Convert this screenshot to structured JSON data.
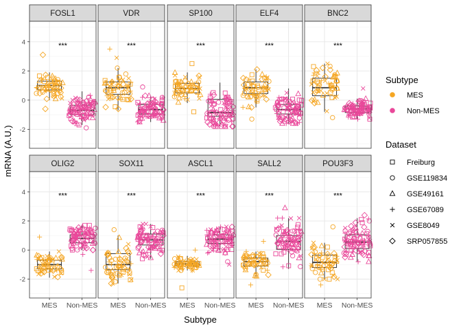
{
  "chart_data": {
    "type": "box-jitter facet",
    "ylabel": "mRNA (A.U.)",
    "xlabel": "Subtype",
    "categories": [
      "MES",
      "Non-MES"
    ],
    "ylim": [
      -3.3,
      5.4
    ],
    "y_ticks": [
      -2,
      0,
      2,
      4
    ],
    "y_tick_labels": [
      "-2",
      "0",
      "2",
      "4"
    ],
    "grid": true,
    "facet_rows": 2,
    "facet_cols": 5,
    "colors": {
      "MES": "#F5A623",
      "Non-MES": "#E9489A"
    },
    "legend": {
      "placement": "right",
      "subtype_title": "Subtype",
      "subtype_entries": [
        "MES",
        "Non-MES"
      ],
      "dataset_title": "Dataset",
      "dataset_entries": [
        {
          "label": "Freiburg",
          "shape": "square"
        },
        {
          "label": "GSE119834",
          "shape": "circle"
        },
        {
          "label": "GSE49161",
          "shape": "triangle"
        },
        {
          "label": "GSE67089",
          "shape": "plus"
        },
        {
          "label": "GSE8049",
          "shape": "cross"
        },
        {
          "label": "SRP057855",
          "shape": "diamond"
        }
      ]
    },
    "panels": [
      {
        "gene": "FOSL1",
        "significance": "***",
        "groups": [
          {
            "name": "MES",
            "median": 1.0,
            "q1": 0.7,
            "q3": 1.3,
            "whisker_low": 0.0,
            "whisker_high": 1.9,
            "outliers": [
              3.1,
              -0.6
            ]
          },
          {
            "name": "Non-MES",
            "median": -0.7,
            "q1": -1.0,
            "q3": -0.35,
            "whisker_low": -1.7,
            "whisker_high": 0.6,
            "outliers": [
              -1.9
            ]
          }
        ]
      },
      {
        "gene": "VDR",
        "significance": "***",
        "groups": [
          {
            "name": "MES",
            "median": 0.85,
            "q1": 0.4,
            "q3": 1.25,
            "whisker_low": -0.7,
            "whisker_high": 2.2,
            "outliers": [
              3.5,
              2.9
            ]
          },
          {
            "name": "Non-MES",
            "median": -0.65,
            "q1": -0.95,
            "q3": -0.3,
            "whisker_low": -1.5,
            "whisker_high": 0.3,
            "outliers": [
              0.9
            ]
          }
        ]
      },
      {
        "gene": "SP100",
        "significance": "***",
        "groups": [
          {
            "name": "MES",
            "median": 0.8,
            "q1": 0.5,
            "q3": 1.15,
            "whisker_low": -0.2,
            "whisker_high": 1.9,
            "outliers": [
              2.5,
              -0.8
            ]
          },
          {
            "name": "Non-MES",
            "median": -0.85,
            "q1": -1.1,
            "q3": 0.05,
            "whisker_low": -1.8,
            "whisker_high": 1.2,
            "outliers": []
          }
        ]
      },
      {
        "gene": "ELF4",
        "significance": "***",
        "groups": [
          {
            "name": "MES",
            "median": 0.85,
            "q1": 0.45,
            "q3": 1.25,
            "whisker_low": -0.5,
            "whisker_high": 2.1,
            "outliers": [
              -1.3
            ]
          },
          {
            "name": "Non-MES",
            "median": -0.65,
            "q1": -0.95,
            "q3": -0.3,
            "whisker_low": -1.6,
            "whisker_high": 0.8,
            "outliers": []
          }
        ]
      },
      {
        "gene": "BNC2",
        "significance": "***",
        "groups": [
          {
            "name": "MES",
            "median": 0.85,
            "q1": 0.3,
            "q3": 1.5,
            "whisker_low": -0.8,
            "whisker_high": 2.5,
            "outliers": [
              -1.2
            ]
          },
          {
            "name": "Non-MES",
            "median": -0.6,
            "q1": -0.85,
            "q3": -0.4,
            "whisker_low": -1.3,
            "whisker_high": 0.1,
            "outliers": [
              0.8
            ]
          }
        ]
      },
      {
        "gene": "OLIG2",
        "significance": "***",
        "groups": [
          {
            "name": "MES",
            "median": -1.0,
            "q1": -1.3,
            "q3": -0.7,
            "whisker_low": -1.9,
            "whisker_high": -0.1,
            "outliers": [
              0.9
            ]
          },
          {
            "name": "Non-MES",
            "median": 0.8,
            "q1": 0.5,
            "q3": 1.05,
            "whisker_low": 0.0,
            "whisker_high": 1.7,
            "outliers": [
              -1.4,
              -0.3
            ]
          }
        ]
      },
      {
        "gene": "SOX11",
        "significance": "***",
        "groups": [
          {
            "name": "MES",
            "median": -1.0,
            "q1": -1.35,
            "q3": -0.25,
            "whisker_low": -2.3,
            "whisker_high": 1.0,
            "outliers": [
              1.4
            ]
          },
          {
            "name": "Non-MES",
            "median": 0.7,
            "q1": 0.35,
            "q3": 1.1,
            "whisker_low": -0.6,
            "whisker_high": 1.8,
            "outliers": []
          }
        ]
      },
      {
        "gene": "ASCL1",
        "significance": "***",
        "groups": [
          {
            "name": "MES",
            "median": -0.95,
            "q1": -1.1,
            "q3": -0.8,
            "whisker_low": -1.4,
            "whisker_high": -0.4,
            "outliers": [
              -2.6,
              0.0
            ]
          },
          {
            "name": "Non-MES",
            "median": 0.75,
            "q1": 0.45,
            "q3": 1.05,
            "whisker_low": -0.2,
            "whisker_high": 1.6,
            "outliers": [
              -1.0,
              -0.8
            ]
          }
        ]
      },
      {
        "gene": "SALL2",
        "significance": "***",
        "groups": [
          {
            "name": "MES",
            "median": -0.8,
            "q1": -1.1,
            "q3": -0.55,
            "whisker_low": -1.8,
            "whisker_high": -0.1,
            "outliers": [
              -2.4,
              0.6
            ]
          },
          {
            "name": "Non-MES",
            "median": 0.6,
            "q1": 0.05,
            "q3": 1.0,
            "whisker_low": -1.3,
            "whisker_high": 2.2,
            "outliers": [
              2.9
            ]
          }
        ]
      },
      {
        "gene": "POU3F3",
        "significance": "***",
        "groups": [
          {
            "name": "MES",
            "median": -0.85,
            "q1": -1.2,
            "q3": -0.35,
            "whisker_low": -2.0,
            "whisker_high": 0.5,
            "outliers": [
              -2.4,
              1.6
            ]
          },
          {
            "name": "Non-MES",
            "median": 0.55,
            "q1": 0.1,
            "q3": 1.05,
            "whisker_low": -0.8,
            "whisker_high": 2.2,
            "outliers": [
              2.4
            ]
          }
        ]
      }
    ]
  }
}
